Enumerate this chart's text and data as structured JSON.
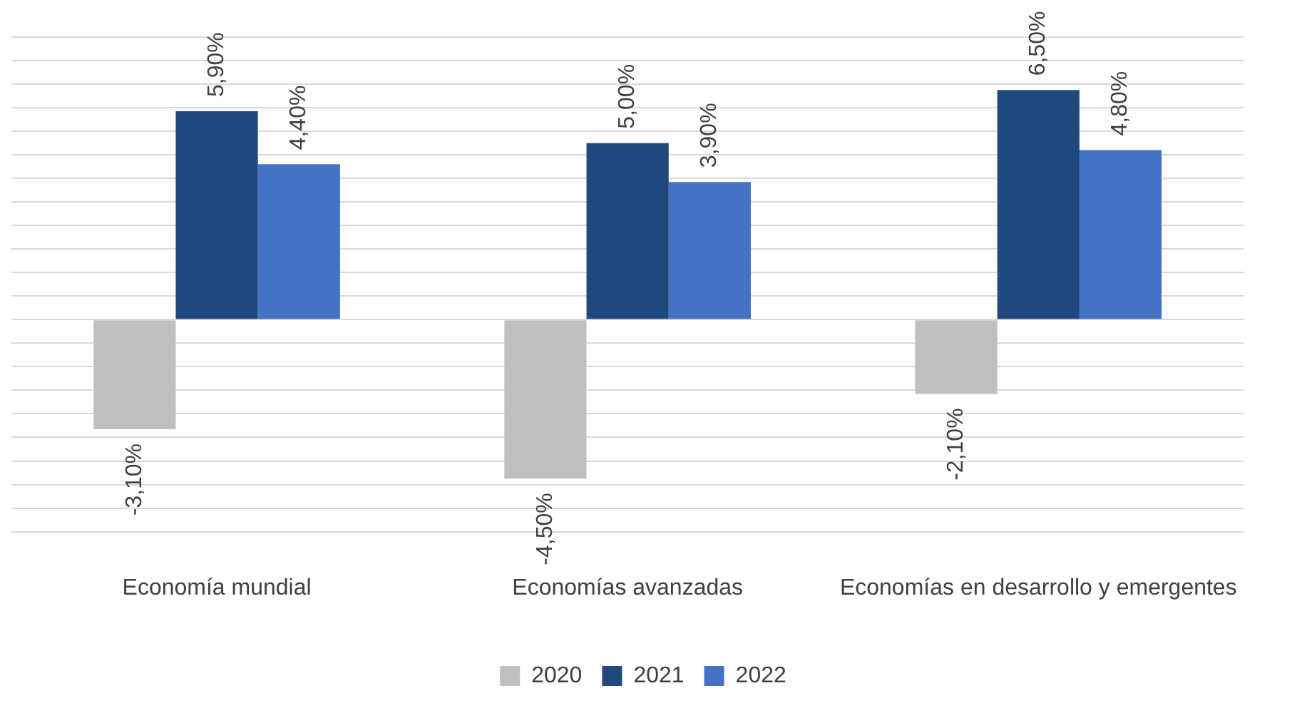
{
  "chart_data": {
    "type": "bar",
    "categories": [
      "Economía mundial",
      "Economías avanzadas",
      "Economías en desarrollo y emergentes"
    ],
    "series": [
      {
        "name": "2020",
        "color": "#bfbfbf",
        "values": [
          -3.1,
          -4.5,
          -2.1
        ],
        "value_labels": [
          "-3,10%",
          "-4,50%",
          "-2,10%"
        ]
      },
      {
        "name": "2021",
        "color": "#1f497d",
        "values": [
          5.9,
          5.0,
          6.5
        ],
        "value_labels": [
          "5,90%",
          "5,00%",
          "6,50%"
        ]
      },
      {
        "name": "2022",
        "color": "#4472c4",
        "values": [
          4.4,
          3.9,
          4.8
        ],
        "value_labels": [
          "4,40%",
          "3,90%",
          "4,80%"
        ]
      }
    ],
    "ylim": [
      -6,
      8
    ],
    "yticks": [
      {
        "value": -6,
        "label": null
      },
      {
        "value": -5.333,
        "label": null
      },
      {
        "value": -4.667,
        "label": null
      },
      {
        "value": -4,
        "label": null
      },
      {
        "value": -3.333,
        "label": null
      },
      {
        "value": -2.667,
        "label": null
      },
      {
        "value": -2,
        "label": null
      },
      {
        "value": -1.333,
        "label": null
      },
      {
        "value": -0.667,
        "label": null
      },
      {
        "value": 0,
        "label": null
      },
      {
        "value": 0.667,
        "label": null
      },
      {
        "value": 1.333,
        "label": null
      },
      {
        "value": 2,
        "label": null
      },
      {
        "value": 2.667,
        "label": null
      },
      {
        "value": 3.333,
        "label": null
      },
      {
        "value": 4,
        "label": null
      },
      {
        "value": 4.667,
        "label": null
      },
      {
        "value": 5.333,
        "label": null
      },
      {
        "value": 6,
        "label": null
      },
      {
        "value": 6.667,
        "label": null
      },
      {
        "value": 7.333,
        "label": null
      },
      {
        "value": 8,
        "label": null
      }
    ],
    "tick_labels": "x",
    "grid": "y",
    "legend": "bottom"
  }
}
